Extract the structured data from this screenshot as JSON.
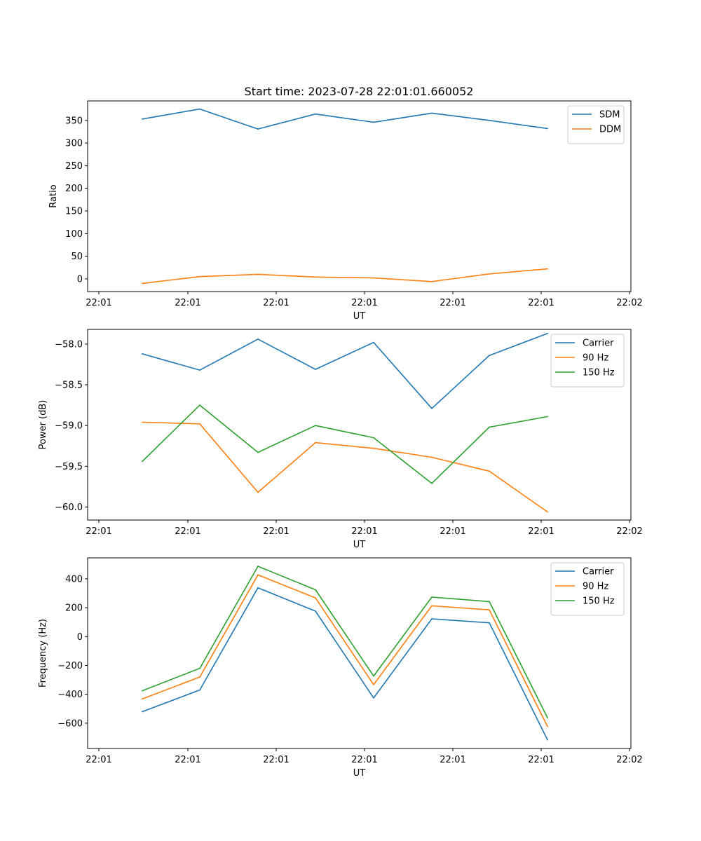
{
  "figure": {
    "title": "Start time: 2023-07-28 22:01:01.660052"
  },
  "colors": {
    "blue": "#1f77b4",
    "orange": "#ff7f0e",
    "green": "#2ca02c"
  },
  "chart_data": [
    {
      "type": "line",
      "title": "Start time: 2023-07-28 22:01:01.660052",
      "xlabel": "UT",
      "ylabel": "Ratio",
      "x_tick_labels": [
        "22:01",
        "22:01",
        "22:01",
        "22:01",
        "22:01",
        "22:01",
        "22:02"
      ],
      "y_ticks": [
        0,
        50,
        100,
        150,
        200,
        250,
        300,
        350
      ],
      "ylim": [
        -28,
        393
      ],
      "legend_position": "top-right",
      "series": [
        {
          "name": "SDM",
          "color": "blue",
          "values": [
            353,
            375,
            331,
            364,
            346,
            366,
            350,
            332
          ]
        },
        {
          "name": "DDM",
          "color": "orange",
          "values": [
            -10,
            5,
            10,
            4,
            2,
            -6,
            11,
            22
          ]
        }
      ]
    },
    {
      "type": "line",
      "title": "",
      "xlabel": "UT",
      "ylabel": "Power (dB)",
      "x_tick_labels": [
        "22:01",
        "22:01",
        "22:01",
        "22:01",
        "22:01",
        "22:01",
        "22:02"
      ],
      "y_ticks": [
        -60.0,
        -59.5,
        -59.0,
        -58.5,
        -58.0
      ],
      "y_tick_labels": [
        "−60.0",
        "−59.5",
        "−59.0",
        "−58.5",
        "−58.0"
      ],
      "ylim": [
        -60.16,
        -57.82
      ],
      "legend_position": "top-right",
      "series": [
        {
          "name": "Carrier",
          "color": "blue",
          "values": [
            -58.12,
            -58.32,
            -57.94,
            -58.31,
            -57.98,
            -58.79,
            -58.14,
            -57.87
          ]
        },
        {
          "name": "90 Hz",
          "color": "orange",
          "values": [
            -58.96,
            -58.98,
            -59.82,
            -59.21,
            -59.28,
            -59.39,
            -59.56,
            -60.06
          ]
        },
        {
          "name": "150 Hz",
          "color": "green",
          "values": [
            -59.44,
            -58.75,
            -59.33,
            -59.0,
            -59.15,
            -59.71,
            -59.02,
            -58.89
          ]
        }
      ]
    },
    {
      "type": "line",
      "title": "",
      "xlabel": "UT",
      "ylabel": "Frequency (Hz)",
      "x_tick_labels": [
        "22:01",
        "22:01",
        "22:01",
        "22:01",
        "22:01",
        "22:01",
        "22:02"
      ],
      "y_ticks": [
        -600,
        -400,
        -200,
        0,
        200,
        400
      ],
      "y_tick_labels": [
        "−600",
        "−400",
        "−200",
        "0",
        "200",
        "400"
      ],
      "ylim": [
        -775,
        545
      ],
      "legend_position": "top-right",
      "series": [
        {
          "name": "Carrier",
          "color": "blue",
          "values": [
            -520,
            -370,
            338,
            176,
            -425,
            123,
            95,
            -715
          ]
        },
        {
          "name": "90 Hz",
          "color": "orange",
          "values": [
            -432,
            -280,
            427,
            268,
            -333,
            213,
            185,
            -622
          ]
        },
        {
          "name": "150 Hz",
          "color": "green",
          "values": [
            -375,
            -220,
            487,
            324,
            -273,
            273,
            242,
            -562
          ]
        }
      ]
    }
  ]
}
